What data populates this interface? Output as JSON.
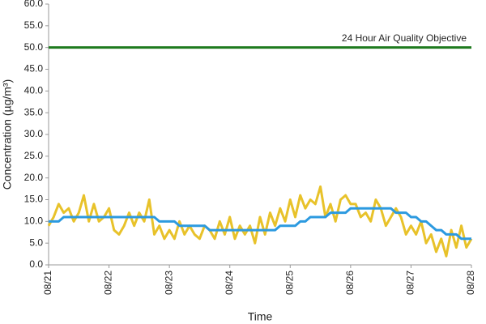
{
  "chart_data": {
    "type": "line",
    "xlabel": "Time",
    "ylabel": "Concentration (µg/m³)",
    "x": [
      0,
      2,
      4,
      6,
      8,
      10,
      12,
      14,
      16,
      18,
      20,
      22,
      24,
      26,
      28,
      30,
      32,
      34,
      36,
      38,
      40,
      42,
      44,
      46,
      48,
      50,
      52,
      54,
      56,
      58,
      60,
      62,
      64,
      66,
      68,
      70,
      72,
      74,
      76,
      78,
      80,
      82,
      84,
      86,
      88,
      90,
      92,
      94,
      96,
      98,
      100,
      102,
      104,
      106,
      108,
      110,
      112,
      114,
      116,
      118,
      120,
      122,
      124,
      126,
      128,
      130,
      132,
      134,
      136,
      138,
      140,
      142,
      144,
      146,
      148,
      150,
      152,
      154,
      156,
      158,
      160,
      162,
      164,
      166,
      168
    ],
    "series": [
      {
        "color": "#e8c22a",
        "values": [
          9,
          11,
          14,
          12,
          13,
          10,
          12,
          16,
          10,
          14,
          10,
          11,
          13,
          8,
          7,
          9,
          12,
          9,
          12,
          10,
          15,
          7,
          9,
          6,
          8,
          6,
          10,
          7,
          9,
          7,
          6,
          9,
          8,
          6,
          10,
          7,
          11,
          6,
          9,
          7,
          9,
          5,
          11,
          7,
          12,
          9,
          13,
          10,
          15,
          11,
          16,
          13,
          15,
          14,
          18,
          11,
          14,
          10,
          15,
          16,
          14,
          14,
          11,
          12,
          10,
          15,
          13,
          9,
          11,
          13,
          11,
          7,
          9,
          7,
          10,
          5,
          7,
          3,
          6,
          2,
          8,
          4,
          9,
          4,
          6
        ]
      },
      {
        "color": "#2c9ae0",
        "values": [
          10,
          10,
          10,
          11,
          11,
          11,
          11,
          11,
          11,
          11,
          11,
          11,
          11,
          11,
          11,
          11,
          11,
          11,
          11,
          11,
          11,
          11,
          10,
          10,
          10,
          10,
          9,
          9,
          9,
          9,
          9,
          9,
          8,
          8,
          8,
          8,
          8,
          8,
          8,
          8,
          8,
          8,
          8,
          8,
          8,
          8,
          9,
          9,
          9,
          9,
          10,
          10,
          11,
          11,
          11,
          11,
          12,
          12,
          12,
          12,
          13,
          13,
          13,
          13,
          13,
          13,
          13,
          13,
          13,
          12,
          12,
          12,
          11,
          11,
          10,
          10,
          9,
          8,
          8,
          7,
          7,
          7,
          6,
          6,
          6
        ]
      }
    ],
    "objective": {
      "value": 50,
      "label": "24 Hour Air Quality Objective",
      "color": "#1e7a1e"
    },
    "xlim": [
      0,
      168
    ],
    "xticks": [
      {
        "value": 0,
        "label": "08/21"
      },
      {
        "value": 24,
        "label": "08/22"
      },
      {
        "value": 48,
        "label": "08/23"
      },
      {
        "value": 72,
        "label": "08/24"
      },
      {
        "value": 96,
        "label": "08/25"
      },
      {
        "value": 120,
        "label": "08/26"
      },
      {
        "value": 144,
        "label": "08/27"
      },
      {
        "value": 168,
        "label": "08/28"
      }
    ],
    "ylim": [
      0,
      60
    ],
    "yticks": [
      {
        "value": 0,
        "label": "0.0"
      },
      {
        "value": 5,
        "label": "5.0"
      },
      {
        "value": 10,
        "label": "10.0"
      },
      {
        "value": 15,
        "label": "15.0"
      },
      {
        "value": 20,
        "label": "20.0"
      },
      {
        "value": 25,
        "label": "25.0"
      },
      {
        "value": 30,
        "label": "30.0"
      },
      {
        "value": 35,
        "label": "35.0"
      },
      {
        "value": 40,
        "label": "40.0"
      },
      {
        "value": 45,
        "label": "45.0"
      },
      {
        "value": 50,
        "label": "50.0"
      },
      {
        "value": 55,
        "label": "55.0"
      },
      {
        "value": 60,
        "label": "60.0"
      }
    ],
    "grid": false
  }
}
